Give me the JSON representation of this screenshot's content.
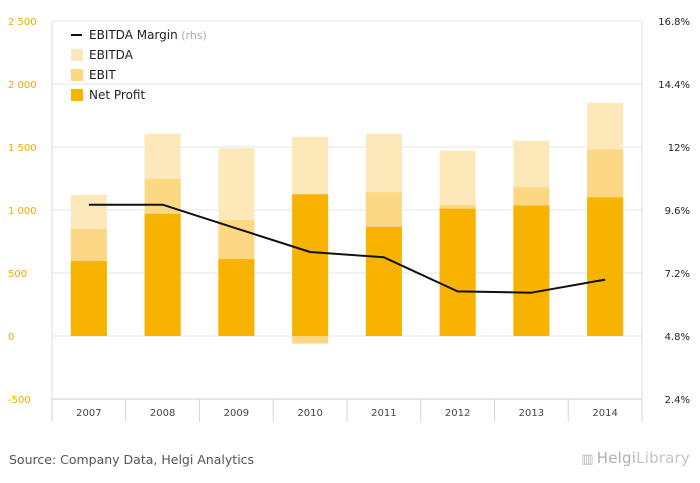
{
  "chart_data": {
    "type": "bar",
    "stacking": "overlay",
    "categories": [
      "2007",
      "2008",
      "2009",
      "2010",
      "2011",
      "2012",
      "2013",
      "2014"
    ],
    "series": [
      {
        "name": "EBITDA",
        "kind": "bar",
        "axis": "left",
        "color": "#fde8b9",
        "values": [
          1120,
          1605,
          1490,
          1580,
          1605,
          1470,
          1550,
          1850
        ]
      },
      {
        "name": "EBIT",
        "kind": "bar",
        "axis": "left",
        "color": "#fcd884",
        "values": [
          850,
          1245,
          920,
          -60,
          1140,
          1040,
          1180,
          1480
        ]
      },
      {
        "name": "Net Profit",
        "kind": "bar",
        "axis": "left",
        "color": "#f8b200",
        "values": [
          595,
          970,
          610,
          1125,
          865,
          1010,
          1035,
          1100
        ]
      },
      {
        "name": "EBITDA Margin",
        "kind": "line",
        "axis": "right",
        "color": "#111111",
        "values": [
          9.8,
          9.8,
          8.9,
          8.0,
          7.8,
          6.5,
          6.45,
          6.95
        ]
      }
    ],
    "legend": [
      {
        "key": "EBITDA Margin",
        "label": "EBITDA Margin",
        "suffix": "(rhs)",
        "symbol": "line"
      },
      {
        "key": "EBITDA",
        "label": "EBITDA",
        "symbol": "box"
      },
      {
        "key": "EBIT",
        "label": "EBIT",
        "symbol": "box"
      },
      {
        "key": "Net Profit",
        "label": "Net Profit",
        "symbol": "box"
      }
    ],
    "legend_position": "top-left",
    "y_left": {
      "min": -500,
      "max": 2500,
      "ticks": [
        -500,
        0,
        500,
        1000,
        1500,
        2000,
        2500
      ],
      "tick_labels": [
        "-500",
        "0",
        "500",
        "1 000",
        "1 500",
        "2 000",
        "2 500"
      ],
      "color": "#f2a900"
    },
    "y_right": {
      "min": 2.4,
      "max": 16.8,
      "ticks": [
        2.4,
        4.8,
        7.2,
        9.6,
        12,
        14.4,
        16.8
      ],
      "tick_labels": [
        "2.4%",
        "4.8%",
        "7.2%",
        "9.6%",
        "12%",
        "14.4%",
        "16.8%"
      ],
      "color": "#222222"
    },
    "grid": true
  },
  "footer": {
    "source": "Source: Company Data, Helgi Analytics",
    "brand_main": "Helgi",
    "brand_light": "Library"
  }
}
